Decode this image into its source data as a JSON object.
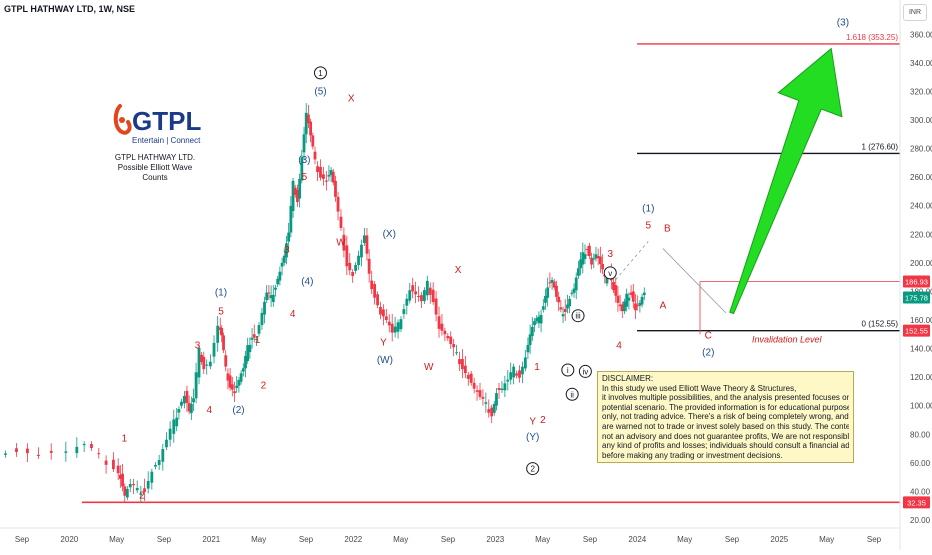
{
  "chart_data": {
    "type": "candlestick",
    "title": "GTPL HATHWAY LTD, 1W, NSE",
    "currency": "INR",
    "ylim": [
      20,
      370
    ],
    "y_ticks": [
      20,
      40,
      60,
      80,
      100,
      120,
      140,
      160,
      180,
      200,
      220,
      240,
      260,
      280,
      300,
      320,
      340,
      360
    ],
    "x_ticks": [
      "Sep",
      "2020",
      "May",
      "Sep",
      "2021",
      "May",
      "Sep",
      "2022",
      "May",
      "Sep",
      "2023",
      "May",
      "Sep",
      "2024",
      "May",
      "Sep",
      "2025",
      "May",
      "Sep"
    ],
    "colors": {
      "up": "#089981",
      "down": "#f23645",
      "fib": "#f23645",
      "arrow": "#22dd22",
      "label_blue": "#1e4e8c",
      "label_red": "#d11b1b"
    },
    "price_path": [
      [
        0.0,
        68
      ],
      [
        1.5,
        70
      ],
      [
        3.0,
        66
      ],
      [
        5.0,
        68
      ],
      [
        6.0,
        72
      ],
      [
        7.0,
        64
      ],
      [
        8.0,
        58
      ],
      [
        8.3,
        50
      ],
      [
        8.6,
        37
      ],
      [
        9.0,
        44
      ],
      [
        9.5,
        40
      ],
      [
        10.0,
        42
      ],
      [
        10.5,
        55
      ],
      [
        11.0,
        62
      ],
      [
        11.5,
        75
      ],
      [
        12.0,
        88
      ],
      [
        12.3,
        100
      ],
      [
        12.7,
        108
      ],
      [
        13.0,
        96
      ],
      [
        13.3,
        104
      ],
      [
        13.7,
        138
      ],
      [
        14.0,
        128
      ],
      [
        14.5,
        132
      ],
      [
        15.0,
        156
      ],
      [
        15.2,
        148
      ],
      [
        15.5,
        125
      ],
      [
        15.8,
        115
      ],
      [
        16.1,
        110
      ],
      [
        16.4,
        118
      ],
      [
        16.7,
        125
      ],
      [
        17.0,
        140
      ],
      [
        17.3,
        150
      ],
      [
        17.6,
        148
      ],
      [
        18.0,
        165
      ],
      [
        18.3,
        178
      ],
      [
        18.6,
        175
      ],
      [
        18.9,
        185
      ],
      [
        19.2,
        195
      ],
      [
        19.5,
        205
      ],
      [
        19.8,
        220
      ],
      [
        20.1,
        255
      ],
      [
        20.4,
        245
      ],
      [
        20.7,
        275
      ],
      [
        21.0,
        305
      ],
      [
        21.3,
        288
      ],
      [
        21.6,
        270
      ],
      [
        22.0,
        262
      ],
      [
        22.4,
        258
      ],
      [
        22.7,
        265
      ],
      [
        23.0,
        245
      ],
      [
        23.4,
        222
      ],
      [
        23.8,
        200
      ],
      [
        24.2,
        192
      ],
      [
        24.6,
        205
      ],
      [
        25.0,
        218
      ],
      [
        25.3,
        190
      ],
      [
        25.7,
        178
      ],
      [
        26.1,
        165
      ],
      [
        26.5,
        160
      ],
      [
        26.9,
        150
      ],
      [
        27.3,
        156
      ],
      [
        27.7,
        170
      ],
      [
        28.1,
        182
      ],
      [
        28.5,
        178
      ],
      [
        28.9,
        172
      ],
      [
        29.3,
        185
      ],
      [
        29.7,
        175
      ],
      [
        30.1,
        155
      ],
      [
        30.5,
        150
      ],
      [
        30.9,
        142
      ],
      [
        31.3,
        135
      ],
      [
        31.7,
        128
      ],
      [
        32.1,
        120
      ],
      [
        32.5,
        112
      ],
      [
        32.9,
        105
      ],
      [
        33.3,
        100
      ],
      [
        33.7,
        95
      ],
      [
        34.0,
        110
      ],
      [
        34.4,
        112
      ],
      [
        34.8,
        117
      ],
      [
        35.2,
        125
      ],
      [
        35.6,
        122
      ],
      [
        36.0,
        135
      ],
      [
        36.3,
        150
      ],
      [
        36.6,
        158
      ],
      [
        36.9,
        160
      ],
      [
        37.2,
        172
      ],
      [
        37.5,
        184
      ],
      [
        37.8,
        188
      ],
      [
        38.1,
        175
      ],
      [
        38.4,
        165
      ],
      [
        38.7,
        168
      ],
      [
        39.0,
        176
      ],
      [
        39.3,
        182
      ],
      [
        39.6,
        195
      ],
      [
        39.9,
        205
      ],
      [
        40.2,
        212
      ],
      [
        40.5,
        200
      ],
      [
        40.8,
        206
      ],
      [
        41.1,
        198
      ],
      [
        41.4,
        188
      ],
      [
        41.7,
        196
      ],
      [
        42.0,
        182
      ],
      [
        42.3,
        172
      ],
      [
        42.6,
        165
      ],
      [
        42.9,
        176
      ],
      [
        43.2,
        180
      ],
      [
        43.5,
        168
      ],
      [
        43.8,
        172
      ],
      [
        44.1,
        178
      ]
    ],
    "x_domain": [
      0,
      61.5
    ],
    "annotations": {
      "fib_levels": [
        {
          "ratio_label": "1.618 (353.25)",
          "value": 353.25,
          "color": "#f23645"
        },
        {
          "ratio_label": "1 (276.60)",
          "value": 276.6,
          "color": "#131722"
        },
        {
          "ratio_label": "0 (152.55)",
          "value": 152.55,
          "color": "#131722"
        }
      ],
      "support_line": {
        "value": 32.35,
        "label": "32.35"
      },
      "resistance_line": {
        "value": 186.93,
        "label": "186.93"
      },
      "invalidation_label": "Invalidation Level",
      "price_badges": [
        {
          "label": "186.93",
          "value": 186.93,
          "color": "#f23645"
        },
        {
          "label": "175.78",
          "value": 175.78,
          "color": "#089981"
        },
        {
          "label": "152.55",
          "value": 152.55,
          "color": "#f23645"
        },
        {
          "label": "32.35",
          "value": 32.35,
          "color": "#f23645"
        }
      ],
      "wave_labels": [
        {
          "text": "1",
          "x": 8.5,
          "y": 75,
          "style": "red"
        },
        {
          "text": "2",
          "x": 9.7,
          "y": 35,
          "style": "red"
        },
        {
          "text": "3",
          "x": 13.5,
          "y": 140,
          "style": "red"
        },
        {
          "text": "4",
          "x": 14.3,
          "y": 95,
          "style": "red"
        },
        {
          "text": "(1)",
          "x": 15.1,
          "y": 177,
          "style": "blue"
        },
        {
          "text": "5",
          "x": 15.1,
          "y": 164,
          "style": "red"
        },
        {
          "text": "(2)",
          "x": 16.3,
          "y": 95,
          "style": "blue"
        },
        {
          "text": "1",
          "x": 17.6,
          "y": 144,
          "style": "red"
        },
        {
          "text": "2",
          "x": 18.0,
          "y": 112,
          "style": "red"
        },
        {
          "text": "3",
          "x": 19.6,
          "y": 207,
          "style": "red"
        },
        {
          "text": "4",
          "x": 20.0,
          "y": 162,
          "style": "red"
        },
        {
          "text": "(4)",
          "x": 21.0,
          "y": 185,
          "style": "blue"
        },
        {
          "text": "5",
          "x": 20.8,
          "y": 258,
          "style": "red"
        },
        {
          "text": "(3)",
          "x": 20.8,
          "y": 270,
          "style": "blue"
        },
        {
          "text": "(5)",
          "x": 21.9,
          "y": 318,
          "style": "blue"
        },
        {
          "text": "1",
          "x": 21.9,
          "y": 333,
          "style": "circle"
        },
        {
          "text": "X",
          "x": 24.0,
          "y": 313,
          "style": "red"
        },
        {
          "text": "W",
          "x": 23.3,
          "y": 212,
          "style": "red"
        },
        {
          "text": "(X)",
          "x": 26.6,
          "y": 218,
          "style": "blue"
        },
        {
          "text": "Y",
          "x": 26.2,
          "y": 142,
          "style": "red"
        },
        {
          "text": "(W)",
          "x": 26.3,
          "y": 130,
          "style": "blue"
        },
        {
          "text": "X",
          "x": 31.3,
          "y": 193,
          "style": "red"
        },
        {
          "text": "W",
          "x": 29.3,
          "y": 125,
          "style": "red"
        },
        {
          "text": "1",
          "x": 36.7,
          "y": 125,
          "style": "red"
        },
        {
          "text": "2",
          "x": 37.1,
          "y": 88,
          "style": "red"
        },
        {
          "text": "Y",
          "x": 36.4,
          "y": 87,
          "style": "red"
        },
        {
          "text": "(Y)",
          "x": 36.4,
          "y": 76,
          "style": "blue"
        },
        {
          "text": "2",
          "x": 36.4,
          "y": 56,
          "style": "circle"
        },
        {
          "text": "i",
          "x": 38.8,
          "y": 125,
          "style": "circle"
        },
        {
          "text": "ii",
          "x": 39.1,
          "y": 108,
          "style": "circle"
        },
        {
          "text": "iii",
          "x": 39.5,
          "y": 163,
          "style": "circle"
        },
        {
          "text": "iv",
          "x": 40.0,
          "y": 124,
          "style": "circle"
        },
        {
          "text": "v",
          "x": 41.7,
          "y": 193,
          "style": "circle"
        },
        {
          "text": "3",
          "x": 41.7,
          "y": 204,
          "style": "red"
        },
        {
          "text": "4",
          "x": 42.3,
          "y": 140,
          "style": "red"
        },
        {
          "text": "(1)",
          "x": 44.3,
          "y": 236,
          "style": "blue"
        },
        {
          "text": "5",
          "x": 44.3,
          "y": 224,
          "style": "red"
        },
        {
          "text": "B",
          "x": 45.6,
          "y": 222,
          "style": "red"
        },
        {
          "text": "A",
          "x": 45.3,
          "y": 168,
          "style": "red"
        },
        {
          "text": "C",
          "x": 48.4,
          "y": 147,
          "style": "red"
        },
        {
          "text": "(2)",
          "x": 48.4,
          "y": 135,
          "style": "blue"
        },
        {
          "text": "(3)",
          "x": 57.6,
          "y": 366,
          "style": "blue"
        }
      ],
      "arrow": {
        "from": [
          50.0,
          165
        ],
        "to": [
          56.8,
          350
        ]
      }
    }
  },
  "logo": {
    "brand": "GTPL",
    "tagline": "Entertain | Connect",
    "company": "GTPL HATHWAY LTD.",
    "subtitle": "Possible Elliott Wave Counts"
  },
  "disclaimer": {
    "heading": "DISCLAIMER:",
    "lines": [
      "In this study we used Elliott Wave Theory & Structures,",
      "it involves multiple possibilities, and the analysis presented focuses on one",
      "potential scenario. The provided information is for educational purposes",
      "only, not trading advice. There's a risk of being completely wrong, and users",
      "are warned not to trade or invest solely based on this study. The content is",
      "not an advisory and does not guarantee profits, We are not responsible for",
      "any kind of profits and losses; individuals should consult a financial advisor",
      "before making any trading or investment decisions."
    ]
  }
}
